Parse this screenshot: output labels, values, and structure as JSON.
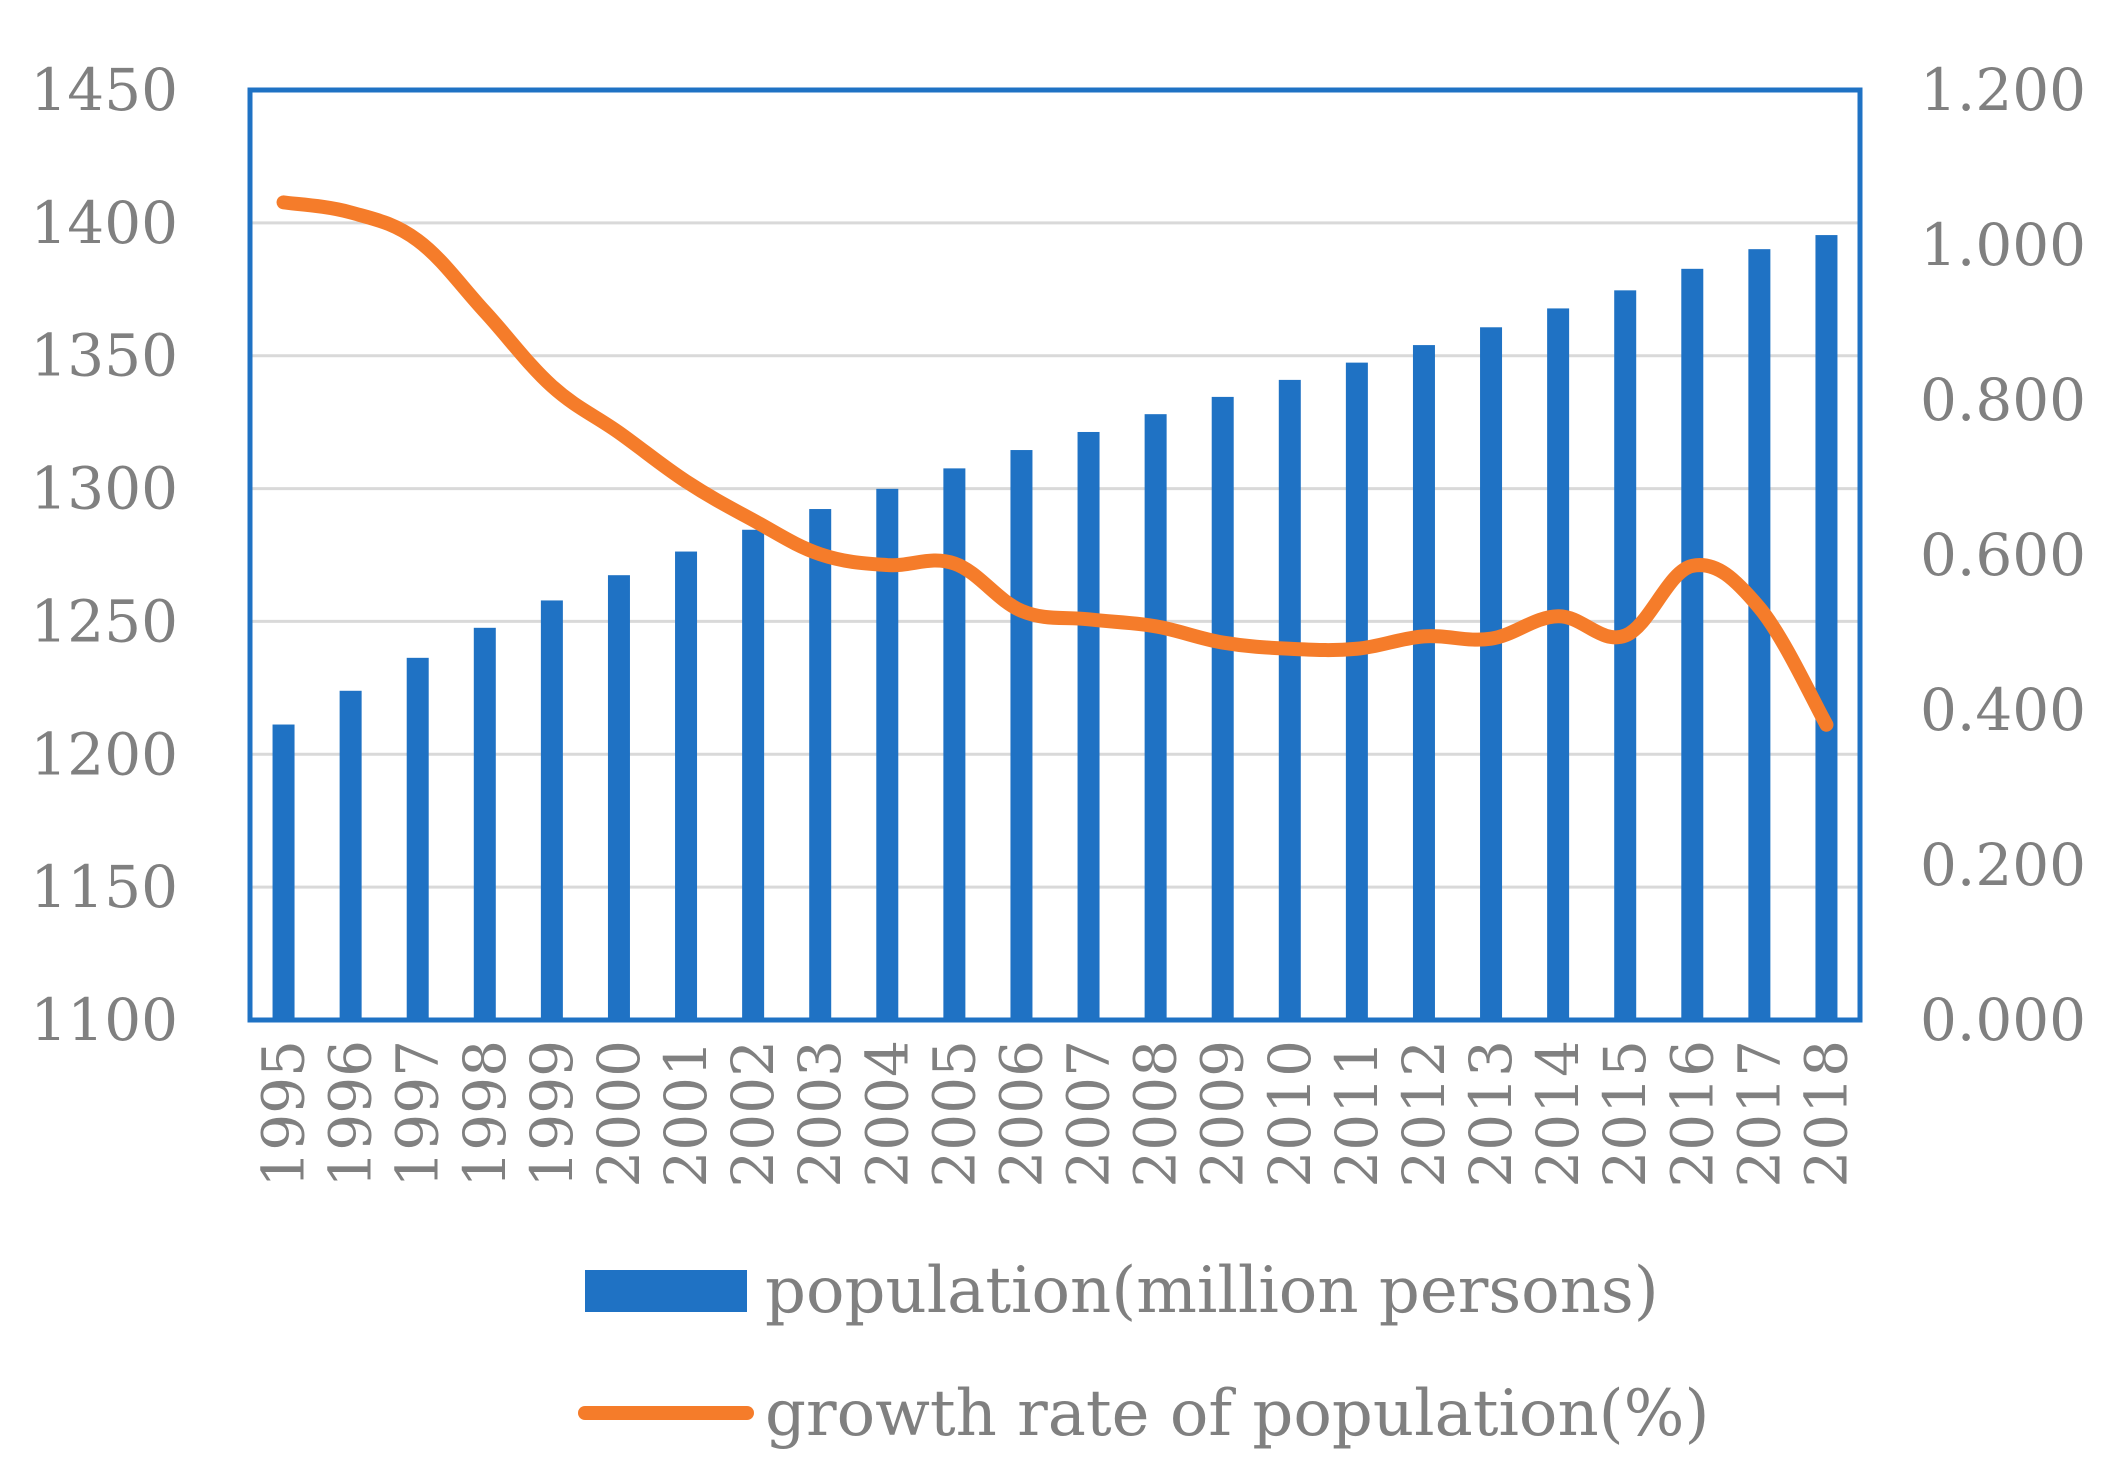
{
  "chart_data": {
    "type": "bar+line",
    "categories": [
      "1995",
      "1996",
      "1997",
      "1998",
      "1999",
      "2000",
      "2001",
      "2002",
      "2003",
      "2004",
      "2005",
      "2006",
      "2007",
      "2008",
      "2009",
      "2010",
      "2011",
      "2012",
      "2013",
      "2014",
      "2015",
      "2016",
      "2017",
      "2018"
    ],
    "series": [
      {
        "name": "population(million persons)",
        "type": "bar",
        "axis": "left",
        "color": "#1f72c4",
        "values": [
          1211.2,
          1223.9,
          1236.3,
          1247.6,
          1257.9,
          1267.4,
          1276.3,
          1284.5,
          1292.3,
          1299.9,
          1307.6,
          1314.5,
          1321.3,
          1328.0,
          1334.5,
          1340.9,
          1347.4,
          1354.0,
          1360.7,
          1367.8,
          1374.6,
          1382.7,
          1390.1,
          1395.4
        ]
      },
      {
        "name": "growth rate of population(%)",
        "type": "line",
        "axis": "right",
        "color": "#f57c2a",
        "values": [
          1.055,
          1.042,
          1.006,
          0.914,
          0.818,
          0.758,
          0.695,
          0.645,
          0.601,
          0.587,
          0.589,
          0.528,
          0.517,
          0.508,
          0.487,
          0.479,
          0.479,
          0.495,
          0.492,
          0.521,
          0.496,
          0.586,
          0.532,
          0.381
        ]
      }
    ],
    "y_left": {
      "min": 1100,
      "max": 1450,
      "ticks": [
        "1100",
        "1150",
        "1200",
        "1250",
        "1300",
        "1350",
        "1400",
        "1450"
      ]
    },
    "y_right": {
      "min": 0,
      "max": 1.2,
      "ticks": [
        "0.000",
        "0.200",
        "0.400",
        "0.600",
        "0.800",
        "1.000",
        "1.200"
      ]
    },
    "gridlines": true,
    "legend_position": "bottom",
    "title": "",
    "xlabel": "",
    "ylabel": ""
  },
  "legend": {
    "bar_label": "population(million persons)",
    "line_label": "growth rate of population(%)"
  }
}
